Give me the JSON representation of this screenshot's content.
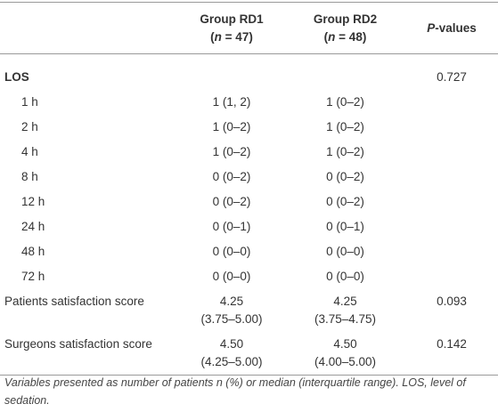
{
  "table": {
    "header": {
      "rd1": {
        "line1": "Group RD1",
        "line2": [
          "(",
          "n",
          " = 47)"
        ]
      },
      "rd2": {
        "line1": "Group RD2",
        "line2": [
          "(",
          "n",
          " = 48)"
        ]
      },
      "p": [
        "P",
        "-values"
      ]
    },
    "rows": [
      {
        "label": "LOS",
        "bold": true,
        "p": "0.727"
      },
      {
        "label": "1 h",
        "indent": true,
        "rd1": [
          "1 (1, 2)"
        ],
        "rd2": [
          "1 (0–2)"
        ]
      },
      {
        "label": "2 h",
        "indent": true,
        "rd1": [
          "1 (0–2)"
        ],
        "rd2": [
          "1 (0–2)"
        ]
      },
      {
        "label": "4 h",
        "indent": true,
        "rd1": [
          "1 (0–2)"
        ],
        "rd2": [
          "1 (0–2)"
        ]
      },
      {
        "label": "8 h",
        "indent": true,
        "rd1": [
          "0 (0–2)"
        ],
        "rd2": [
          "0 (0–2)"
        ]
      },
      {
        "label": "12 h",
        "indent": true,
        "rd1": [
          "0 (0–2)"
        ],
        "rd2": [
          "0 (0–2)"
        ]
      },
      {
        "label": "24 h",
        "indent": true,
        "rd1": [
          "0 (0–1)"
        ],
        "rd2": [
          "0 (0–1)"
        ]
      },
      {
        "label": "48 h",
        "indent": true,
        "rd1": [
          "0 (0–0)"
        ],
        "rd2": [
          "0 (0–0)"
        ]
      },
      {
        "label": "72 h",
        "indent": true,
        "rd1": [
          "0 (0–0)"
        ],
        "rd2": [
          "0 (0–0)"
        ]
      },
      {
        "label": "Patients satisfaction score",
        "rd1": [
          "4.25",
          "(3.75–5.00)"
        ],
        "rd2": [
          "4.25",
          "(3.75–4.75)"
        ],
        "p": "0.093"
      },
      {
        "label": "Surgeons satisfaction score",
        "rd1": [
          "4.50",
          "(4.25–5.00)"
        ],
        "rd2": [
          "4.50",
          "(4.00–5.00)"
        ],
        "p": "0.142"
      }
    ],
    "footnote": "Variables presented as number of patients n (%) or median (interquartile range). LOS, level of sedation."
  }
}
